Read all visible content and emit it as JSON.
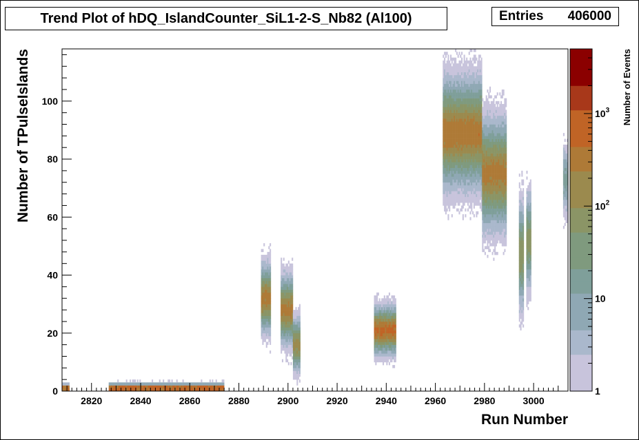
{
  "chart_data": {
    "type": "heatmap",
    "title": "Trend Plot of hDQ_IslandCounter_SiL1-2-S_Nb82 (Al100)",
    "stats": {
      "label": "Entries",
      "value": "406000"
    },
    "xlabel": "Run Number",
    "ylabel": "Number of TPulseIslands",
    "zlabel": "Number of Events",
    "xlim": [
      2808,
      2814
    ],
    "ylim": [
      0,
      118
    ],
    "z_scale": "log",
    "zlim": [
      1,
      5000
    ],
    "x_ticks": [
      2820,
      2840,
      2860,
      2880,
      2900,
      2920,
      2940,
      2960,
      2980,
      3000
    ],
    "y_ticks": [
      0,
      20,
      40,
      60,
      80,
      100
    ],
    "z_tick_labels": [
      {
        "value": 1,
        "label": "1"
      },
      {
        "value": 10,
        "label": "10"
      },
      {
        "value": 100,
        "label": "10",
        "exp": "2"
      },
      {
        "value": 1000,
        "label": "10",
        "exp": "3"
      }
    ],
    "palette": [
      "#c8c4dc",
      "#aab8cc",
      "#8fa8b4",
      "#7f9f9a",
      "#7f9a7e",
      "#8b9566",
      "#9b8a4e",
      "#ae7a37",
      "#c06426",
      "#a8381a",
      "#8b0000"
    ],
    "clusters": [
      {
        "runs": [
          2808,
          2811
        ],
        "center": 1,
        "spread": 0.6,
        "peak_log": 3.4,
        "outlier_max": 4
      },
      {
        "runs": [
          2827,
          2874
        ],
        "center": 1,
        "spread": 0.7,
        "peak_log": 3.3,
        "outlier_max": 6
      },
      {
        "runs": [
          2889,
          2893
        ],
        "center": 32,
        "spread": 5,
        "peak_log": 2.6,
        "outlier_max": 52
      },
      {
        "runs": [
          2897,
          2902
        ],
        "center": 28,
        "spread": 5,
        "peak_log": 2.6,
        "outlier_max": 44
      },
      {
        "runs": [
          2902,
          2905
        ],
        "center": 16,
        "spread": 4,
        "peak_log": 2.3,
        "outlier_max": 20
      },
      {
        "runs": [
          2935,
          2944
        ],
        "center": 21,
        "spread": 3.5,
        "peak_log": 2.9,
        "outlier_max": 41
      },
      {
        "runs": [
          2963,
          2979
        ],
        "center": 89,
        "spread": 8,
        "peak_log": 2.7,
        "outlier_max": 113
      },
      {
        "runs": [
          2979,
          2989
        ],
        "center": 75,
        "spread": 8,
        "peak_log": 2.6,
        "outlier_max": 98
      },
      {
        "runs": [
          2994,
          2996
        ],
        "center": 47,
        "spread": 8,
        "peak_log": 2.0,
        "outlier_max": 65
      },
      {
        "runs": [
          2997,
          2999
        ],
        "center": 52,
        "spread": 7,
        "peak_log": 2.0,
        "outlier_max": 66
      },
      {
        "runs": [
          3012,
          3014
        ],
        "center": 73,
        "spread": 5,
        "peak_log": 1.3,
        "outlier_max": 85
      }
    ]
  }
}
